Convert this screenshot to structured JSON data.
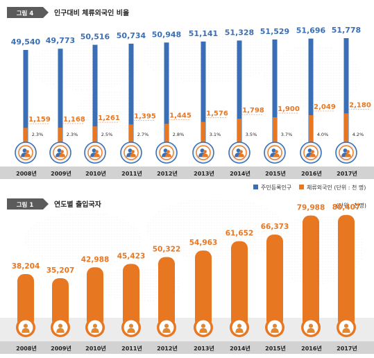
{
  "figure4": {
    "tag": "그림 4",
    "title": "인구대비 체류외국인 비율",
    "legend": [
      {
        "label": "주민등록인구",
        "color": "#3a6fb5"
      },
      {
        "label": "체류외국인 (단위 : 천 명)",
        "color": "#e87722"
      }
    ]
  },
  "figure1": {
    "tag": "그림 1",
    "title": "연도별 출입국자",
    "unit_note": "(단위 : 천명)"
  },
  "colors": {
    "blue": "#3a6fb5",
    "orange": "#e87722",
    "tag_bg": "#5b5b5b",
    "year_band": "#d2d2d2",
    "circle_fill": "#f3f3f3",
    "person": "#e0872f"
  },
  "chart_data": [
    {
      "type": "bar",
      "title": "인구대비 체류외국인 비율",
      "categories": [
        "2008년",
        "2009년",
        "2010년",
        "2011년",
        "2012년",
        "2013년",
        "2014년",
        "2015년",
        "2016년",
        "2017년"
      ],
      "series": [
        {
          "name": "주민등록인구",
          "color": "#3a6fb5",
          "labels": [
            "49,540",
            "49,773",
            "50,516",
            "50,734",
            "50,948",
            "51,141",
            "51,328",
            "51,529",
            "51,696",
            "51,778"
          ],
          "values": [
            49540,
            49773,
            50516,
            50734,
            50948,
            51141,
            51328,
            51529,
            51696,
            51778
          ]
        },
        {
          "name": "체류외국인 (단위 : 천 명)",
          "color": "#e87722",
          "labels": [
            "1,159",
            "1,168",
            "1,261",
            "1,395",
            "1,445",
            "1,576",
            "1,798",
            "1,900",
            "2,049",
            "2,180"
          ],
          "values": [
            1159,
            1168,
            1261,
            1395,
            1445,
            1576,
            1798,
            1900,
            2049,
            2180
          ]
        }
      ],
      "ratio_labels": [
        "2.3%",
        "2.3%",
        "2.5%",
        "2.7%",
        "2.8%",
        "3.1%",
        "3.5%",
        "3.7%",
        "4.0%",
        "4.2%"
      ],
      "ratio_values": [
        2.3,
        2.3,
        2.5,
        2.7,
        2.8,
        3.1,
        3.5,
        3.7,
        4.0,
        4.2
      ]
    },
    {
      "type": "bar",
      "title": "연도별 출입국자",
      "categories": [
        "2008년",
        "2009년",
        "2010년",
        "2011년",
        "2012년",
        "2013년",
        "2014년",
        "2015년",
        "2016년",
        "2017년"
      ],
      "series": [
        {
          "color": "#e87722",
          "labels": [
            "38,204",
            "35,207",
            "42,988",
            "45,423",
            "50,322",
            "54,963",
            "61,652",
            "66,373",
            "79,988",
            "80,407"
          ],
          "values": [
            38204,
            35207,
            42988,
            45423,
            50322,
            54963,
            61652,
            66373,
            79988,
            80407
          ]
        }
      ],
      "unit": "(단위 : 천명)"
    }
  ]
}
